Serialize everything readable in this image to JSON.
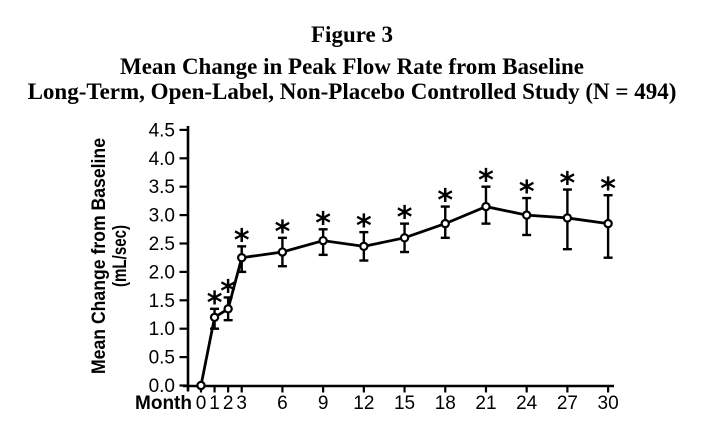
{
  "figure": {
    "label": "Figure 3"
  },
  "chart_data": {
    "type": "line",
    "title": "Mean Change in Peak Flow Rate from Baseline",
    "subtitle": "Long-Term, Open-Label, Non-Placebo Controlled Study (N = 494)",
    "xlabel": "Month",
    "ylabel_line1": "Mean Change from Baseline",
    "ylabel_line2": "(mL/sec)",
    "x": [
      0,
      1,
      2,
      3,
      6,
      9,
      12,
      15,
      18,
      21,
      24,
      27,
      30
    ],
    "y": [
      0.0,
      1.2,
      1.35,
      2.25,
      2.35,
      2.55,
      2.45,
      2.6,
      2.85,
      3.15,
      3.0,
      2.95,
      2.85
    ],
    "error_low": [
      null,
      1.0,
      1.15,
      2.0,
      2.1,
      2.3,
      2.2,
      2.35,
      2.6,
      2.85,
      2.65,
      2.4,
      2.25
    ],
    "error_high": [
      null,
      1.35,
      1.55,
      2.45,
      2.6,
      2.75,
      2.7,
      2.85,
      3.15,
      3.5,
      3.3,
      3.45,
      3.35
    ],
    "significant": [
      false,
      true,
      true,
      true,
      true,
      true,
      true,
      true,
      true,
      true,
      true,
      true,
      true
    ],
    "significance_marker": "*",
    "yticks": [
      0,
      0.5,
      1,
      1.5,
      2,
      2.5,
      3,
      3.5,
      4,
      4.5
    ],
    "ylim": [
      0,
      4.5
    ],
    "xlim": [
      0,
      30
    ],
    "marker": "open-circle",
    "line_color": "#000000",
    "background_color": "#ffffff",
    "grid": false,
    "legend": "none"
  }
}
